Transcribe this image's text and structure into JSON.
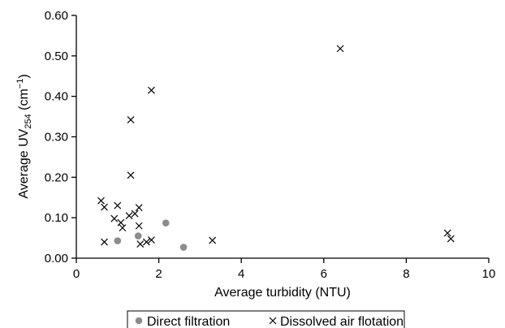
{
  "chart_data": {
    "type": "scatter",
    "xlabel": "Average turbidity (NTU)",
    "ylabel": {
      "main": "Average UV",
      "sub": "254",
      "unit_open": " (cm",
      "sup": "−1",
      "unit_close": ")"
    },
    "xlim": [
      0,
      10
    ],
    "ylim": [
      0,
      0.6
    ],
    "x_ticks": [
      "0",
      "2",
      "4",
      "6",
      "8",
      "10"
    ],
    "y_ticks": [
      "0.00",
      "0.10",
      "0.20",
      "0.30",
      "0.40",
      "0.50",
      "0.60"
    ],
    "grid": false,
    "legend_position": "bottom",
    "series": [
      {
        "name": "Direct filtration",
        "marker": "circle",
        "color": "#8c8c8c",
        "points": [
          [
            1.0,
            0.043
          ],
          [
            1.5,
            0.055
          ],
          [
            2.17,
            0.087
          ],
          [
            2.6,
            0.027
          ]
        ]
      },
      {
        "name": "Dissolved air flotation",
        "marker": "x",
        "color": "#000000",
        "points": [
          [
            0.6,
            0.142
          ],
          [
            0.68,
            0.126
          ],
          [
            0.68,
            0.04
          ],
          [
            0.92,
            0.098
          ],
          [
            1.0,
            0.13
          ],
          [
            1.08,
            0.088
          ],
          [
            1.12,
            0.075
          ],
          [
            1.28,
            0.105
          ],
          [
            1.32,
            0.342
          ],
          [
            1.32,
            0.205
          ],
          [
            1.42,
            0.11
          ],
          [
            1.52,
            0.125
          ],
          [
            1.52,
            0.08
          ],
          [
            1.55,
            0.035
          ],
          [
            1.7,
            0.04
          ],
          [
            1.82,
            0.415
          ],
          [
            1.82,
            0.045
          ],
          [
            3.3,
            0.044
          ],
          [
            6.4,
            0.518
          ],
          [
            9.0,
            0.062
          ],
          [
            9.08,
            0.048
          ]
        ]
      }
    ]
  }
}
